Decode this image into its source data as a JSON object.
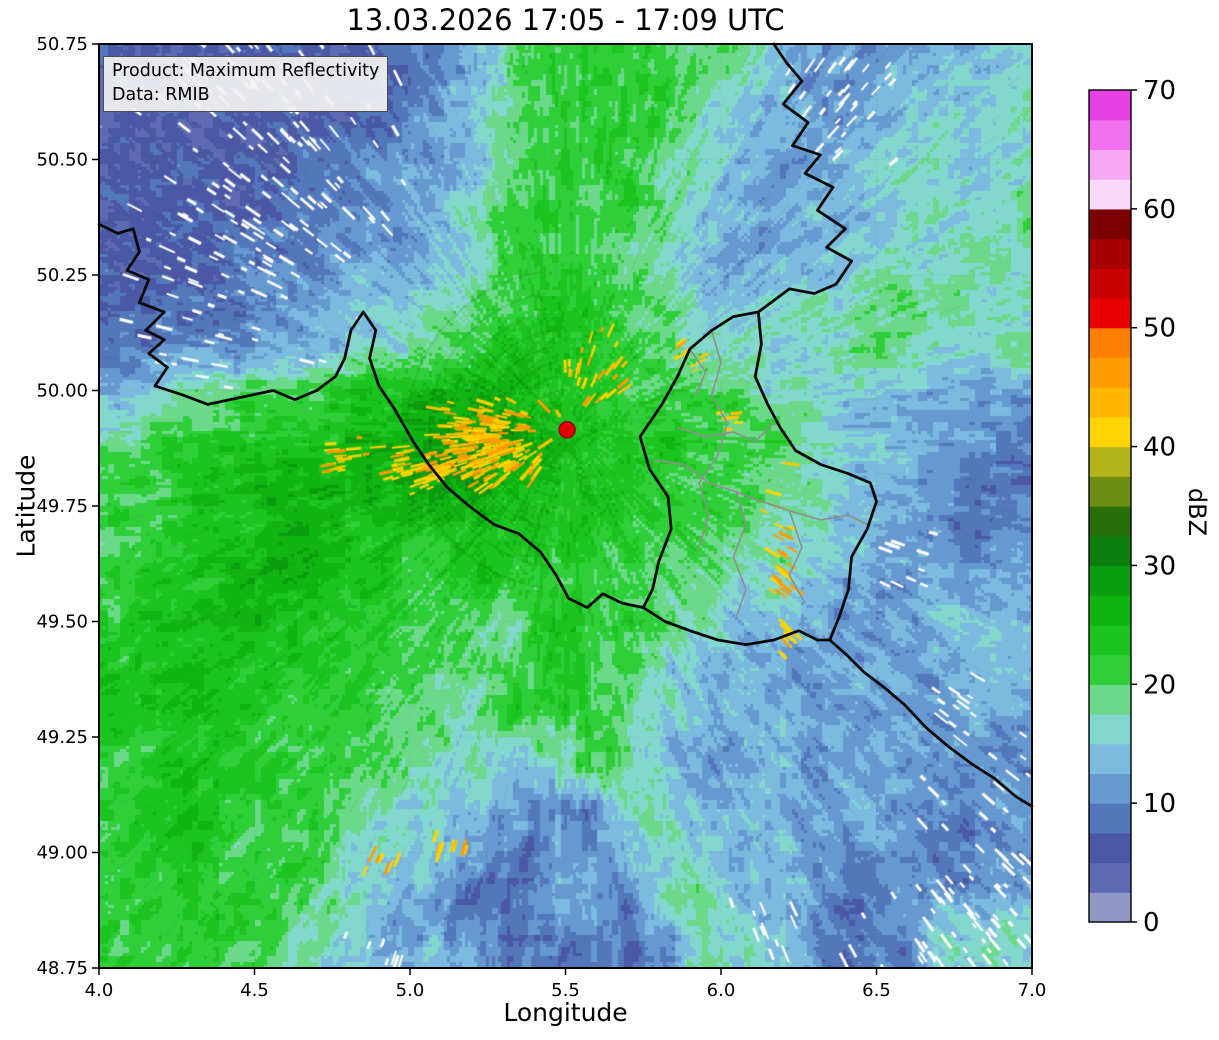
{
  "title": "13.03.2026 17:05 - 17:09 UTC",
  "info_box": {
    "line1": "Product: Maximum Reflectivity",
    "line2": "Data: RMIB"
  },
  "chart_data": {
    "type": "heatmap",
    "title": "13.03.2026 17:05 - 17:09 UTC",
    "xlabel": "Longitude",
    "ylabel": "Latitude",
    "xlim": [
      4.0,
      7.0
    ],
    "ylim": [
      48.75,
      50.75
    ],
    "xtick_values": [
      4.0,
      4.5,
      5.0,
      5.5,
      6.0,
      6.5,
      7.0
    ],
    "xtick_labels": [
      "4.0",
      "4.5",
      "5.0",
      "5.5",
      "6.0",
      "6.5",
      "7.0"
    ],
    "ytick_values": [
      50.75,
      50.5,
      50.25,
      50.0,
      49.75,
      49.5,
      49.25,
      49.0,
      48.75
    ],
    "ytick_labels": [
      "50.75",
      "50.50",
      "50.25",
      "50.00",
      "49.75",
      "49.50",
      "49.25",
      "49.00",
      "48.75"
    ],
    "grid_lons": [
      4.5,
      5.0,
      5.5,
      6.0,
      6.5
    ],
    "grid_lats": [
      49.0,
      49.25,
      49.5,
      49.75,
      50.0,
      50.25,
      50.5
    ],
    "colorbar": {
      "label": "dBZ",
      "vmin": 0,
      "vmax": 70,
      "step": 2.5,
      "tick_values": [
        0,
        10,
        20,
        30,
        40,
        50,
        60,
        70
      ],
      "tick_labels": [
        "0",
        "10",
        "20",
        "30",
        "40",
        "50",
        "60",
        "70"
      ],
      "colors": [
        "#9098c5",
        "#5e6ab3",
        "#4a58a5",
        "#5377bb",
        "#6699d0",
        "#7cbadf",
        "#82d8cd",
        "#6cd98a",
        "#2fcf3a",
        "#1cc41f",
        "#10b512",
        "#0c9c0f",
        "#0b7e0e",
        "#276f09",
        "#6f8d10",
        "#b3b31a",
        "#ffd400",
        "#ffb800",
        "#ff9c00",
        "#ff7f00",
        "#e80000",
        "#c90000",
        "#a80000",
        "#7d0000",
        "#fbd9fa",
        "#f7a8f5",
        "#f171ee",
        "#e640e6"
      ]
    },
    "radar_site": {
      "lon": 5.505,
      "lat": 49.915,
      "marker": "red-circle",
      "color": "#e50000",
      "edge_color": "#8f0000"
    },
    "reflectivity_grid": {
      "cols": 24,
      "rows": 20,
      "lon_range": [
        4.0,
        7.0
      ],
      "lat_top": 50.75,
      "lat_bottom": 48.75,
      "encoding": "base36 char = palette index, dBZ = index * 2.5",
      "rows_top_to_bottom": [
        "222222233478888765445556",
        "222222234578888655445566",
        "222223344578887654456656",
        "222233445688887554556667",
        "222333445688876545566676",
        "233344556789987556667766",
        "334455667899987666677667",
        "56778899AAA9988876655444",
        "788999AABBBA999888655443",
        "8899AAAABBA9998887655433",
        "8899AA999999988876654434",
        "899AAA998998887766544454",
        "899A99988769887655444555",
        "99A999887789876554454455",
        "999988877688876545444454",
        "899988876656875445444444",
        "899888766544366554454444",
        "899888655434456655444334",
        "889887654334437755334455",
        "888876655433334766333666"
      ]
    },
    "spike_clusters": [
      {
        "lon": 4.62,
        "lat": 50.5,
        "n": 90,
        "sx": 0.18,
        "sy": 0.22
      },
      {
        "lon": 4.42,
        "lat": 50.68,
        "n": 45,
        "sx": 0.15,
        "sy": 0.07
      },
      {
        "lon": 4.3,
        "lat": 50.22,
        "n": 30,
        "sx": 0.1,
        "sy": 0.12
      },
      {
        "lon": 4.48,
        "lat": 50.36,
        "n": 35,
        "sx": 0.12,
        "sy": 0.1
      },
      {
        "lon": 6.38,
        "lat": 50.64,
        "n": 40,
        "sx": 0.1,
        "sy": 0.08
      },
      {
        "lon": 6.88,
        "lat": 48.93,
        "n": 70,
        "sx": 0.14,
        "sy": 0.16
      },
      {
        "lon": 6.7,
        "lat": 48.82,
        "n": 35,
        "sx": 0.15,
        "sy": 0.07
      },
      {
        "lon": 6.73,
        "lat": 49.33,
        "n": 14,
        "sx": 0.06,
        "sy": 0.05
      },
      {
        "lon": 6.56,
        "lat": 49.63,
        "n": 10,
        "sx": 0.05,
        "sy": 0.04
      },
      {
        "lon": 6.13,
        "lat": 48.86,
        "n": 12,
        "sx": 0.07,
        "sy": 0.05
      },
      {
        "lon": 4.95,
        "lat": 48.78,
        "n": 8,
        "sx": 0.08,
        "sy": 0.03
      }
    ],
    "yellow_clusters": [
      {
        "lon": 5.27,
        "lat": 49.885,
        "n": 220,
        "sx": 0.09,
        "sy": 0.045
      },
      {
        "lon": 5.08,
        "lat": 49.84,
        "n": 60,
        "sx": 0.09,
        "sy": 0.03
      },
      {
        "lon": 4.8,
        "lat": 49.855,
        "n": 18,
        "sx": 0.05,
        "sy": 0.02
      },
      {
        "lon": 5.58,
        "lat": 50.03,
        "n": 30,
        "sx": 0.06,
        "sy": 0.05
      },
      {
        "lon": 5.9,
        "lat": 50.06,
        "n": 8,
        "sx": 0.03,
        "sy": 0.03
      },
      {
        "lon": 6.18,
        "lat": 49.65,
        "n": 26,
        "sx": 0.025,
        "sy": 0.09
      },
      {
        "lon": 6.2,
        "lat": 49.5,
        "n": 10,
        "sx": 0.02,
        "sy": 0.04
      },
      {
        "lon": 5.12,
        "lat": 49.02,
        "n": 10,
        "sx": 0.04,
        "sy": 0.02
      },
      {
        "lon": 4.92,
        "lat": 48.99,
        "n": 8,
        "sx": 0.03,
        "sy": 0.02
      },
      {
        "lon": 6.02,
        "lat": 49.93,
        "n": 6,
        "sx": 0.02,
        "sy": 0.02
      }
    ],
    "borders": {
      "black": [
        [
          [
            4.0,
            50.36
          ],
          [
            4.06,
            50.34
          ],
          [
            4.11,
            50.35
          ],
          [
            4.13,
            50.3
          ],
          [
            4.09,
            50.26
          ],
          [
            4.16,
            50.24
          ],
          [
            4.13,
            50.19
          ],
          [
            4.21,
            50.17
          ],
          [
            4.15,
            50.13
          ],
          [
            4.21,
            50.11
          ],
          [
            4.16,
            50.08
          ],
          [
            4.22,
            50.05
          ],
          [
            4.18,
            50.01
          ],
          [
            4.27,
            49.99
          ],
          [
            4.35,
            49.97
          ],
          [
            4.42,
            49.98
          ],
          [
            4.49,
            49.99
          ],
          [
            4.56,
            50.0
          ],
          [
            4.63,
            49.98
          ],
          [
            4.7,
            50.0
          ],
          [
            4.76,
            50.03
          ],
          [
            4.79,
            50.07
          ],
          [
            4.81,
            50.13
          ],
          [
            4.85,
            50.17
          ],
          [
            4.89,
            50.13
          ],
          [
            4.87,
            50.07
          ],
          [
            4.9,
            50.01
          ],
          [
            4.95,
            49.96
          ],
          [
            5.01,
            49.89
          ],
          [
            5.06,
            49.84
          ],
          [
            5.12,
            49.79
          ],
          [
            5.19,
            49.75
          ],
          [
            5.27,
            49.71
          ],
          [
            5.35,
            49.69
          ],
          [
            5.42,
            49.65
          ],
          [
            5.47,
            49.6
          ],
          [
            5.51,
            49.55
          ],
          [
            5.57,
            49.53
          ],
          [
            5.62,
            49.56
          ],
          [
            5.68,
            49.54
          ],
          [
            5.75,
            49.53
          ],
          [
            5.82,
            49.5
          ],
          [
            5.9,
            49.48
          ],
          [
            5.99,
            49.46
          ],
          [
            6.08,
            49.45
          ],
          [
            6.17,
            49.46
          ],
          [
            6.25,
            49.48
          ],
          [
            6.31,
            49.46
          ],
          [
            6.35,
            49.46
          ],
          [
            6.4,
            49.43
          ],
          [
            6.46,
            49.39
          ],
          [
            6.52,
            49.36
          ],
          [
            6.59,
            49.32
          ],
          [
            6.66,
            49.27
          ],
          [
            6.73,
            49.23
          ],
          [
            6.81,
            49.19
          ],
          [
            6.88,
            49.16
          ],
          [
            6.95,
            49.12
          ],
          [
            7.0,
            49.1
          ]
        ],
        [
          [
            6.17,
            50.75
          ],
          [
            6.21,
            50.71
          ],
          [
            6.26,
            50.67
          ],
          [
            6.2,
            50.62
          ],
          [
            6.28,
            50.58
          ],
          [
            6.23,
            50.53
          ],
          [
            6.32,
            50.51
          ],
          [
            6.27,
            50.47
          ],
          [
            6.36,
            50.44
          ],
          [
            6.31,
            50.39
          ],
          [
            6.4,
            50.35
          ],
          [
            6.34,
            50.31
          ],
          [
            6.42,
            50.28
          ],
          [
            6.37,
            50.23
          ],
          [
            6.3,
            50.21
          ],
          [
            6.22,
            50.22
          ],
          [
            6.16,
            50.19
          ],
          [
            6.12,
            50.17
          ],
          [
            6.13,
            50.1
          ],
          [
            6.11,
            50.03
          ],
          [
            6.15,
            49.97
          ],
          [
            6.19,
            49.92
          ],
          [
            6.24,
            49.87
          ],
          [
            6.32,
            49.84
          ],
          [
            6.41,
            49.82
          ],
          [
            6.48,
            49.8
          ],
          [
            6.5,
            49.76
          ],
          [
            6.47,
            49.7
          ],
          [
            6.42,
            49.64
          ],
          [
            6.41,
            49.57
          ],
          [
            6.38,
            49.51
          ],
          [
            6.35,
            49.46
          ]
        ],
        [
          [
            6.12,
            50.17
          ],
          [
            6.04,
            50.16
          ],
          [
            5.97,
            50.13
          ],
          [
            5.9,
            50.09
          ],
          [
            5.86,
            50.03
          ],
          [
            5.81,
            49.97
          ],
          [
            5.74,
            49.9
          ],
          [
            5.77,
            49.83
          ],
          [
            5.83,
            49.77
          ],
          [
            5.84,
            49.7
          ],
          [
            5.8,
            49.63
          ],
          [
            5.78,
            49.57
          ],
          [
            5.75,
            49.53
          ]
        ]
      ],
      "gray": [
        [
          [
            5.86,
            49.92
          ],
          [
            5.95,
            49.9
          ],
          [
            6.04,
            49.91
          ],
          [
            6.11,
            49.89
          ],
          [
            6.17,
            49.93
          ]
        ],
        [
          [
            5.97,
            50.13
          ],
          [
            6.0,
            50.06
          ],
          [
            5.97,
            49.99
          ],
          [
            6.02,
            49.93
          ],
          [
            5.99,
            49.86
          ],
          [
            5.93,
            49.8
          ],
          [
            5.96,
            49.73
          ],
          [
            5.93,
            49.66
          ]
        ],
        [
          [
            5.78,
            49.85
          ],
          [
            5.88,
            49.84
          ],
          [
            5.96,
            49.8
          ],
          [
            6.05,
            49.78
          ],
          [
            6.13,
            49.76
          ],
          [
            6.22,
            49.74
          ],
          [
            6.32,
            49.72
          ],
          [
            6.41,
            49.73
          ],
          [
            6.47,
            49.71
          ]
        ],
        [
          [
            6.05,
            49.78
          ],
          [
            6.08,
            49.71
          ],
          [
            6.04,
            49.64
          ],
          [
            6.08,
            49.57
          ],
          [
            6.05,
            49.51
          ]
        ],
        [
          [
            6.22,
            49.74
          ],
          [
            6.26,
            49.66
          ],
          [
            6.22,
            49.6
          ],
          [
            6.27,
            49.54
          ]
        ],
        [
          [
            5.9,
            50.09
          ],
          [
            5.95,
            50.04
          ],
          [
            5.92,
            49.99
          ]
        ]
      ]
    }
  }
}
